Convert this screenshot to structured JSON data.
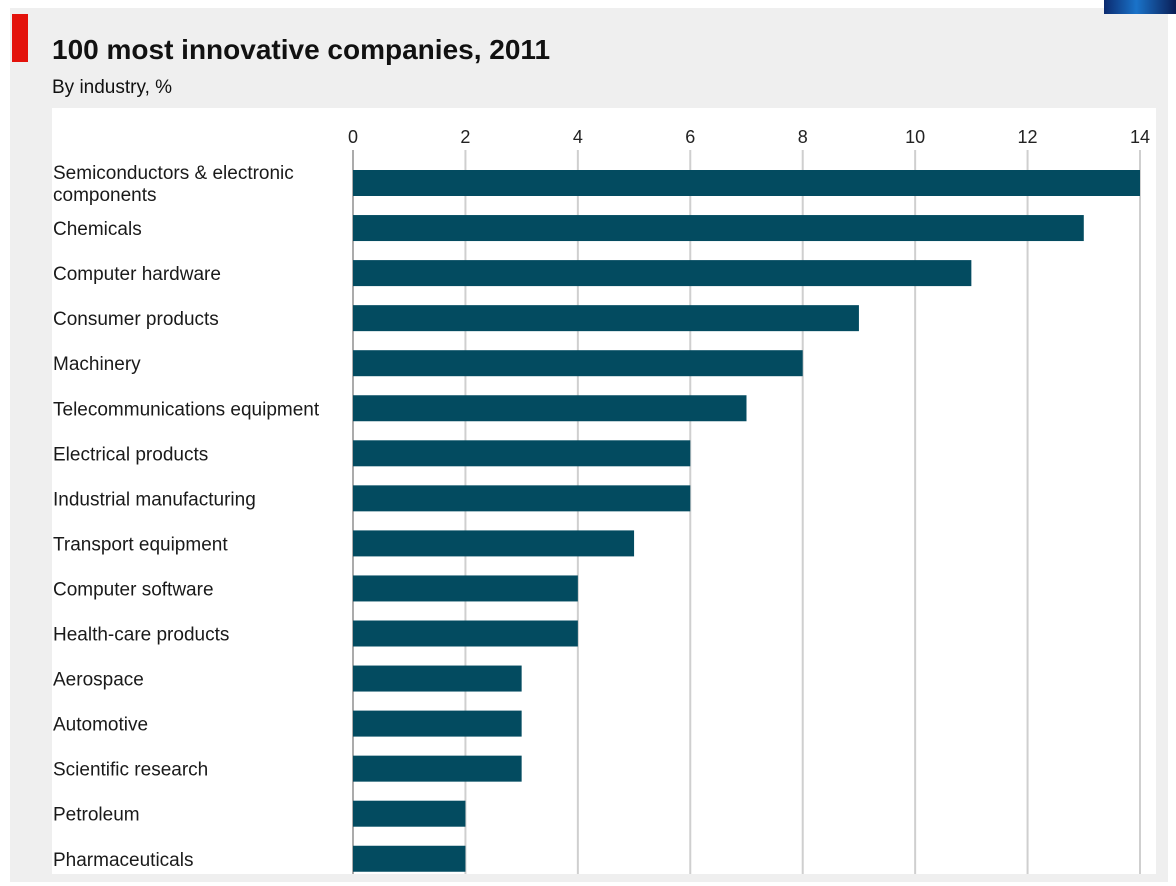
{
  "chart_data": {
    "type": "bar",
    "orientation": "horizontal",
    "title": "100 most innovative companies, 2011",
    "subtitle": "By industry, %",
    "xlim": [
      0,
      14
    ],
    "xticks": [
      0,
      2,
      4,
      6,
      8,
      10,
      12,
      14
    ],
    "grid": true,
    "categories": [
      [
        "Semiconductors & electronic",
        "components"
      ],
      [
        "Chemicals"
      ],
      [
        "Computer hardware"
      ],
      [
        "Consumer products"
      ],
      [
        "Machinery"
      ],
      [
        "Telecommunications equipment"
      ],
      [
        "Electrical products"
      ],
      [
        "Industrial manufacturing"
      ],
      [
        "Transport equipment"
      ],
      [
        "Computer software"
      ],
      [
        "Health-care products"
      ],
      [
        "Aerospace"
      ],
      [
        "Automotive"
      ],
      [
        "Scientific research"
      ],
      [
        "Petroleum"
      ],
      [
        "Pharmaceuticals"
      ]
    ],
    "values": [
      14,
      13,
      11,
      9,
      8,
      7,
      6,
      6,
      5,
      4,
      4,
      3,
      3,
      3,
      2,
      2
    ],
    "colors": {
      "bar": "#034b60",
      "grid": "#cfcfcf",
      "panel": "#efefef",
      "accent": "#e3120b"
    }
  }
}
